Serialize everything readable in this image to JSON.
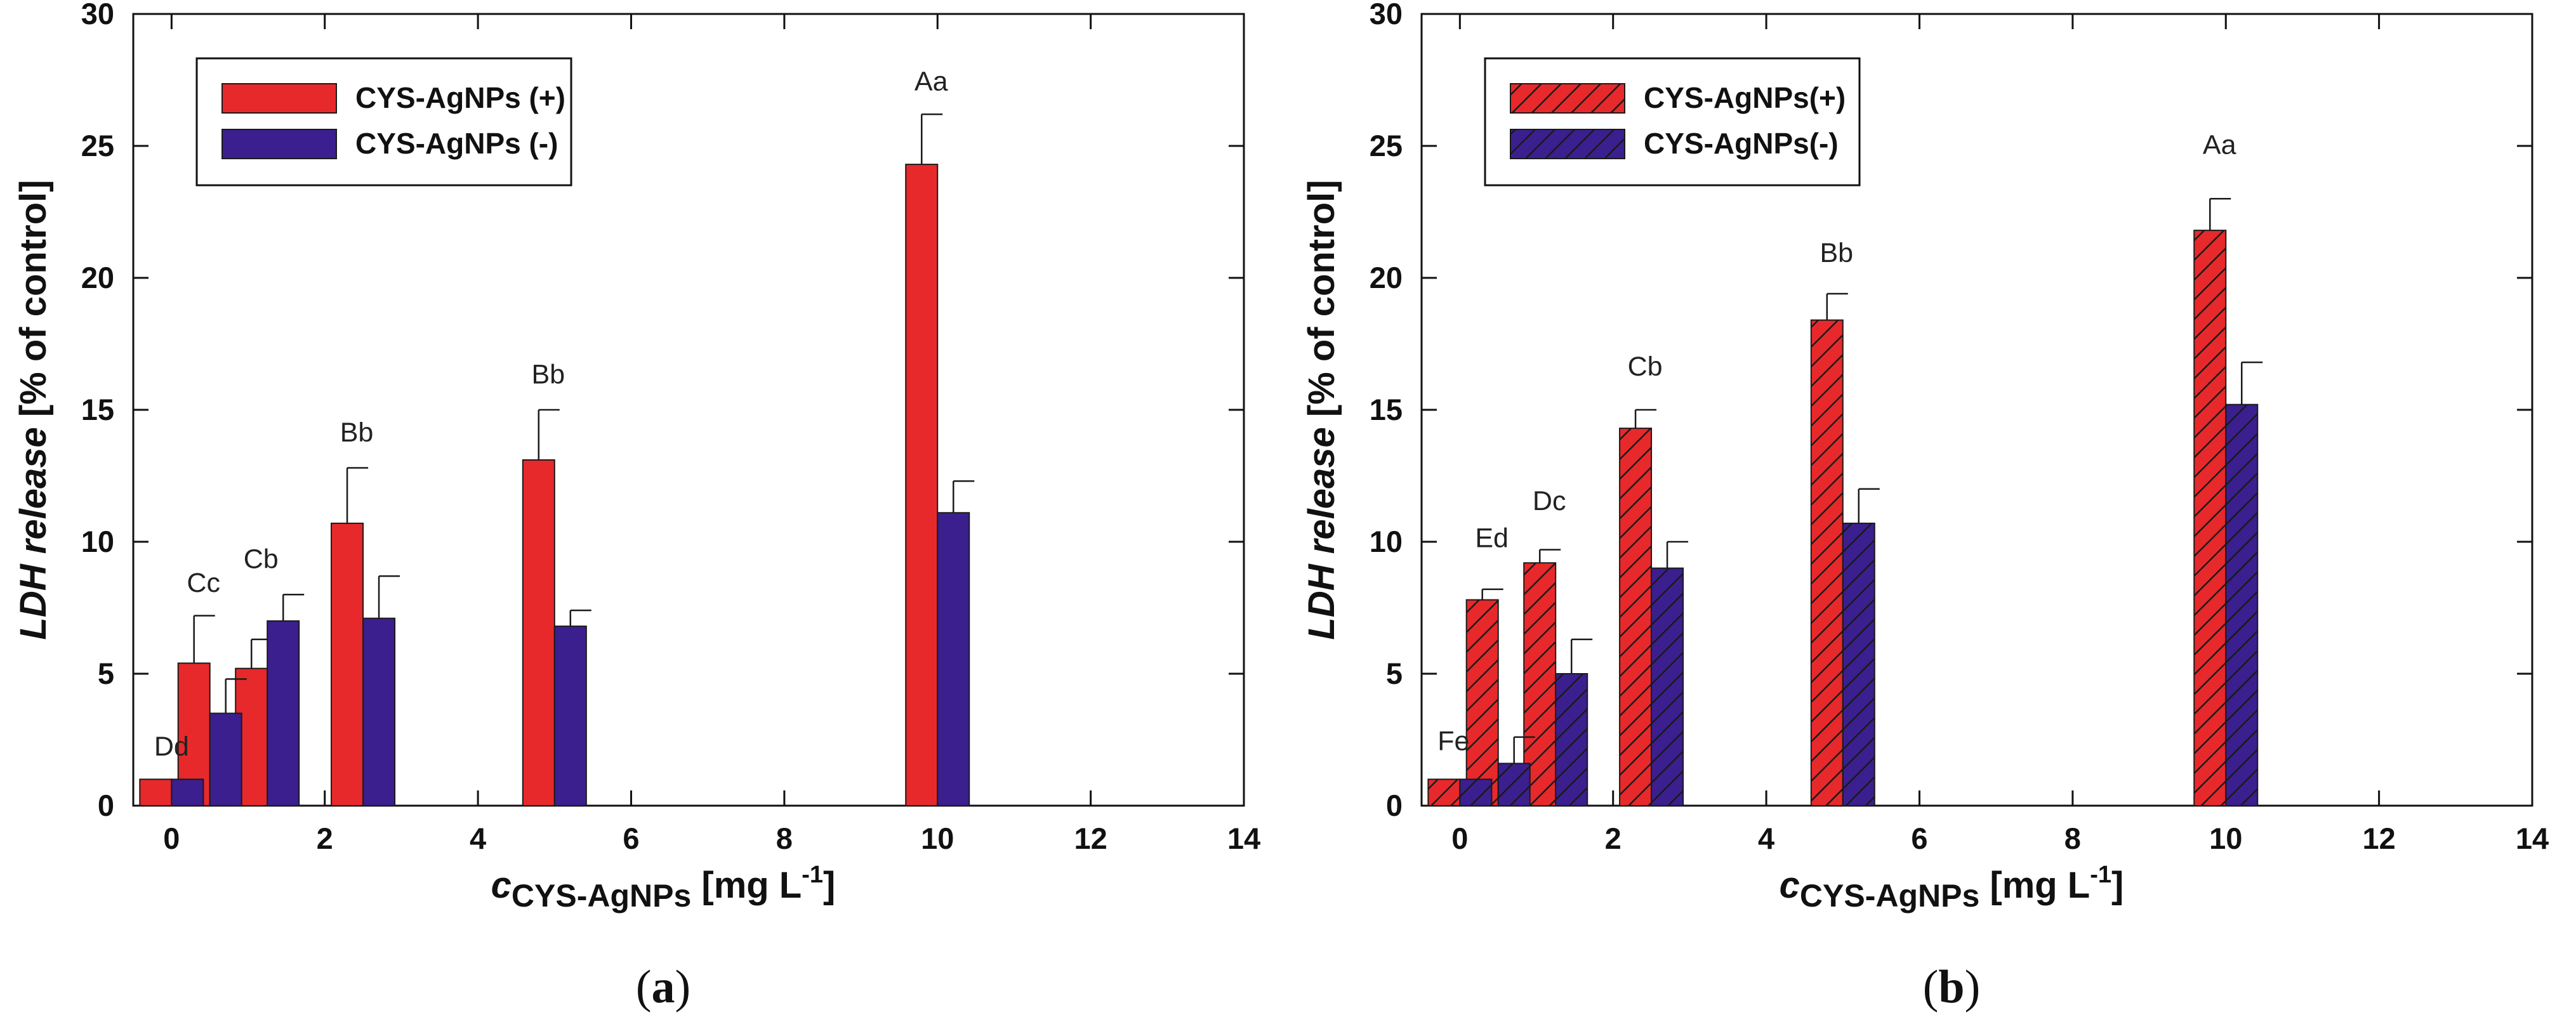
{
  "chart_data": [
    {
      "type": "bar",
      "panel": "a",
      "panel_label": "a",
      "panel_open": "(",
      "panel_close": ")",
      "hatched": false,
      "ylabel_italic": "LDH release",
      "ylabel_rest": " [% of control]",
      "xlabel_c": "c",
      "xlabel_sub": "CYS-AgNPs",
      "xlabel_unit": " [mg L",
      "xlabel_sup": "-1",
      "xlabel_close": "]",
      "xlim": [
        -0.5,
        14
      ],
      "ylim": [
        0,
        30
      ],
      "xticks": [
        0,
        2,
        4,
        6,
        8,
        10,
        12,
        14
      ],
      "yticks": [
        0,
        5,
        10,
        15,
        20,
        25,
        30
      ],
      "legend_position": "top-left",
      "x": [
        0,
        0.5,
        1.25,
        2.5,
        5,
        10
      ],
      "series": [
        {
          "name": "CYS-AgNPs (+)",
          "color": "#e8292b",
          "values": [
            1.0,
            5.4,
            5.2,
            10.7,
            13.1,
            24.3
          ],
          "errors": [
            0,
            1.8,
            1.1,
            2.1,
            1.9,
            1.9
          ]
        },
        {
          "name": "CYS-AgNPs (-)",
          "color": "#3b1f8f",
          "values": [
            1.0,
            3.5,
            7.0,
            7.1,
            6.8,
            11.1
          ],
          "errors": [
            0,
            1.3,
            1.0,
            1.6,
            0.6,
            1.2
          ]
        }
      ],
      "annotations": [
        {
          "text": "Dd",
          "x": 0,
          "y": 1.9
        },
        {
          "text": "Cc",
          "x": 0.5,
          "y": 8.1
        },
        {
          "text": "Cb",
          "x": 1.25,
          "y": 9.0
        },
        {
          "text": "Bb",
          "x": 2.5,
          "y": 13.8
        },
        {
          "text": "Bb",
          "x": 5,
          "y": 16.0
        },
        {
          "text": "Aa",
          "x": 10,
          "y": 27.1
        }
      ]
    },
    {
      "type": "bar",
      "panel": "b",
      "panel_label": "b",
      "panel_open": "(",
      "panel_close": ")",
      "hatched": true,
      "ylabel_italic": "LDH release",
      "ylabel_rest": " [% of control]",
      "xlabel_c": "c",
      "xlabel_sub": "CYS-AgNPs",
      "xlabel_unit": " [mg L",
      "xlabel_sup": "-1",
      "xlabel_close": "]",
      "xlim": [
        -0.5,
        14
      ],
      "ylim": [
        0,
        30
      ],
      "xticks": [
        0,
        2,
        4,
        6,
        8,
        10,
        12,
        14
      ],
      "yticks": [
        0,
        5,
        10,
        15,
        20,
        25,
        30
      ],
      "legend_position": "top-left",
      "x": [
        0,
        0.5,
        1.25,
        2.5,
        5,
        10
      ],
      "series": [
        {
          "name": "CYS-AgNPs(+)",
          "color": "#e8292b",
          "values": [
            1.0,
            7.8,
            9.2,
            14.3,
            18.4,
            21.8
          ],
          "errors": [
            0,
            0.4,
            0.5,
            0.7,
            1.0,
            1.2
          ]
        },
        {
          "name": "CYS-AgNPs(-)",
          "color": "#3b1f8f",
          "values": [
            1.0,
            1.6,
            5.0,
            9.0,
            10.7,
            15.2
          ],
          "errors": [
            0,
            1.0,
            1.3,
            1.0,
            1.3,
            1.6
          ]
        }
      ],
      "annotations": [
        {
          "text": "Fe",
          "x": 0,
          "y": 2.1
        },
        {
          "text": "Ed",
          "x": 0.5,
          "y": 9.8
        },
        {
          "text": "Dc",
          "x": 1.25,
          "y": 11.2
        },
        {
          "text": "Cb",
          "x": 2.5,
          "y": 16.3
        },
        {
          "text": "Bb",
          "x": 5,
          "y": 20.6
        },
        {
          "text": "Aa",
          "x": 10,
          "y": 24.7
        }
      ]
    }
  ]
}
